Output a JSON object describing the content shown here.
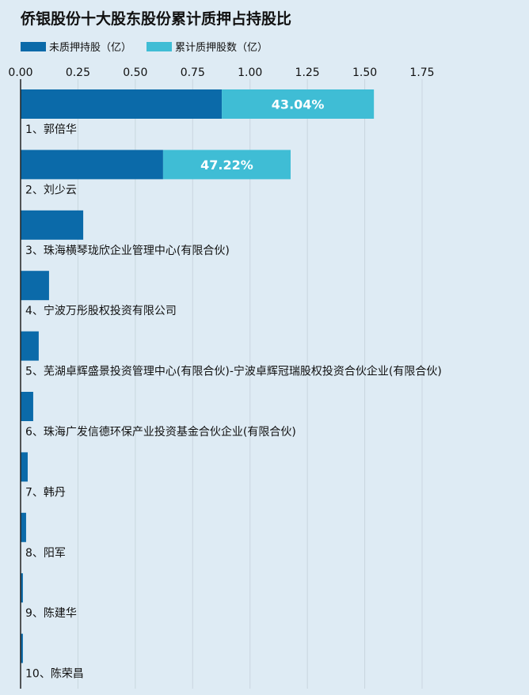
{
  "chart_data": {
    "type": "stacked_barh",
    "title": "侨银股份十大股东股份累计质押占持股比",
    "categories": [
      "1、郭倍华",
      "2、刘少云",
      "3、珠海横琴珑欣企业管理中心(有限合伙)",
      "4、宁波万彤股权投资有限公司",
      "5、芜湖卓辉盛景投资管理中心(有限合伙)-宁波卓辉冠瑞股权投资合伙企业(有限合伙)",
      "6、珠海广发信德环保产业投资基金合伙企业(有限合伙)",
      "7、韩丹",
      "8、阳军",
      "9、陈建华",
      "10、陈荣昌"
    ],
    "series": [
      {
        "name": "未质押持股（亿）",
        "color": "#0b6aa9",
        "values": [
          0.877,
          0.621,
          0.273,
          0.124,
          0.079,
          0.055,
          0.031,
          0.024,
          0.01,
          0.01
        ]
      },
      {
        "name": "累计质押股数（亿）",
        "color": "#3fbdd5",
        "values": [
          0.663,
          0.556,
          null,
          null,
          null,
          null,
          null,
          null,
          null,
          null
        ]
      }
    ],
    "pledge_ratio": {
      "values": [
        43.04,
        47.22,
        null,
        null,
        null,
        null,
        null,
        null,
        null,
        null
      ],
      "value_labels": [
        "43.04%",
        "47.22%",
        null,
        null,
        null,
        null,
        null,
        null,
        null,
        null
      ]
    },
    "xlim": [
      0,
      1.75
    ],
    "xticks": [
      {
        "value": 0,
        "label": "0.00"
      },
      0.25,
      {
        "value": 0.5,
        "label": "0.50"
      },
      0.75,
      {
        "value": 1,
        "label": "1.00"
      },
      1.25,
      {
        "value": 1.5,
        "label": "1.50"
      },
      1.75
    ],
    "grid": true,
    "legend": "top-left"
  }
}
